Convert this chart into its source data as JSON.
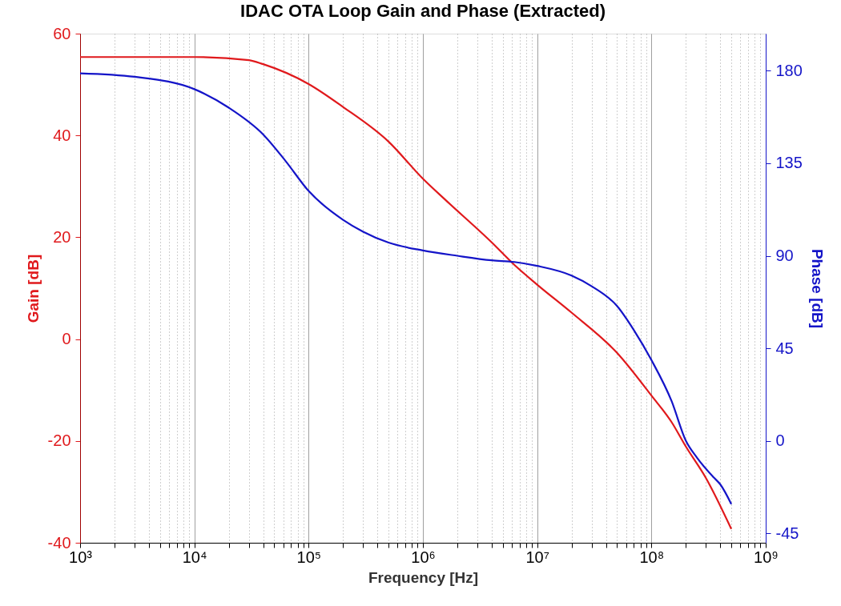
{
  "chart_data": {
    "type": "line",
    "title": "IDAC OTA Loop Gain and Phase (Extracted)",
    "xlabel": "Frequency [Hz]",
    "ylabel": "Gain [dB]",
    "y2label": "Phase [dB]",
    "log": "x",
    "grid": "x",
    "marker": "none",
    "line_style": "solid",
    "xlim": [
      1000,
      1000000000
    ],
    "xticks": [
      {
        "value": 1000,
        "label": "10³"
      },
      {
        "value": 2000,
        "label": null
      },
      {
        "value": 3000,
        "label": null
      },
      {
        "value": 4000,
        "label": null
      },
      {
        "value": 5000,
        "label": null
      },
      {
        "value": 6000,
        "label": null
      },
      {
        "value": 7000,
        "label": null
      },
      {
        "value": 8000,
        "label": null
      },
      {
        "value": 9000,
        "label": null
      },
      {
        "value": 10000,
        "label": "10⁴"
      },
      {
        "value": 20000,
        "label": null
      },
      {
        "value": 30000,
        "label": null
      },
      {
        "value": 40000,
        "label": null
      },
      {
        "value": 50000,
        "label": null
      },
      {
        "value": 60000,
        "label": null
      },
      {
        "value": 70000,
        "label": null
      },
      {
        "value": 80000,
        "label": null
      },
      {
        "value": 90000,
        "label": null
      },
      {
        "value": 100000,
        "label": "10⁵"
      },
      {
        "value": 200000,
        "label": null
      },
      {
        "value": 300000,
        "label": null
      },
      {
        "value": 400000,
        "label": null
      },
      {
        "value": 500000,
        "label": null
      },
      {
        "value": 600000,
        "label": null
      },
      {
        "value": 700000,
        "label": null
      },
      {
        "value": 800000,
        "label": null
      },
      {
        "value": 900000,
        "label": null
      },
      {
        "value": 1000000,
        "label": "10⁶"
      },
      {
        "value": 2000000,
        "label": null
      },
      {
        "value": 3000000,
        "label": null
      },
      {
        "value": 4000000,
        "label": null
      },
      {
        "value": 5000000,
        "label": null
      },
      {
        "value": 6000000,
        "label": null
      },
      {
        "value": 7000000,
        "label": null
      },
      {
        "value": 8000000,
        "label": null
      },
      {
        "value": 9000000,
        "label": null
      },
      {
        "value": 10000000,
        "label": "10⁷"
      },
      {
        "value": 20000000,
        "label": null
      },
      {
        "value": 30000000,
        "label": null
      },
      {
        "value": 40000000,
        "label": null
      },
      {
        "value": 50000000,
        "label": null
      },
      {
        "value": 60000000,
        "label": null
      },
      {
        "value": 70000000,
        "label": null
      },
      {
        "value": 80000000,
        "label": null
      },
      {
        "value": 90000000,
        "label": null
      },
      {
        "value": 100000000,
        "label": "10⁸"
      },
      {
        "value": 200000000,
        "label": null
      },
      {
        "value": 300000000,
        "label": null
      },
      {
        "value": 400000000,
        "label": null
      },
      {
        "value": 500000000,
        "label": null
      },
      {
        "value": 600000000,
        "label": null
      },
      {
        "value": 700000000,
        "label": null
      },
      {
        "value": 800000000,
        "label": null
      },
      {
        "value": 900000000,
        "label": null
      },
      {
        "value": 1000000000,
        "label": "10⁹"
      }
    ],
    "ylim": [
      -40,
      60
    ],
    "yticks": [
      -40,
      -20,
      0,
      20,
      40,
      60
    ],
    "y2lim": [
      -49.5,
      198
    ],
    "y2ticks": [
      -45,
      0,
      45,
      90,
      135,
      180
    ],
    "series": [
      {
        "color": "#e0191c",
        "x": [
          1000,
          3000,
          10000,
          30000,
          40000,
          100000,
          200000,
          500000,
          1000000,
          1600000,
          4000000,
          6300000,
          10000000,
          20000000,
          50000000,
          100000000,
          150000000,
          200000000,
          300000000,
          500000000
        ],
        "values": [
          55.4,
          55.4,
          55.4,
          54.8,
          54.0,
          50.1,
          45.6,
          38.8,
          31.5,
          27.2,
          19.0,
          14.6,
          10.7,
          5.2,
          -2.7,
          -11.1,
          -16.3,
          -21.1,
          -27.3,
          -37.3
        ]
      },
      {
        "color": "#1414c8",
        "axis": "y2",
        "x": [
          1000,
          3000,
          10000,
          20000,
          40000,
          63000,
          100000,
          200000,
          300000,
          500000,
          1000000,
          2000000,
          4000000,
          6300000,
          10000000,
          20000000,
          30000000,
          50000000,
          70000000,
          100000000,
          150000000,
          200000000,
          250000000,
          350000000,
          400000000,
          500000000
        ],
        "values": [
          178.7,
          177,
          171,
          162,
          149,
          136,
          121.5,
          107.5,
          101.7,
          96.4,
          92.6,
          90,
          87.8,
          87,
          85.1,
          80.4,
          75.2,
          65.6,
          54,
          39.3,
          19.4,
          0.1,
          -8.1,
          -17.7,
          -21.1,
          -30.7
        ]
      }
    ]
  }
}
